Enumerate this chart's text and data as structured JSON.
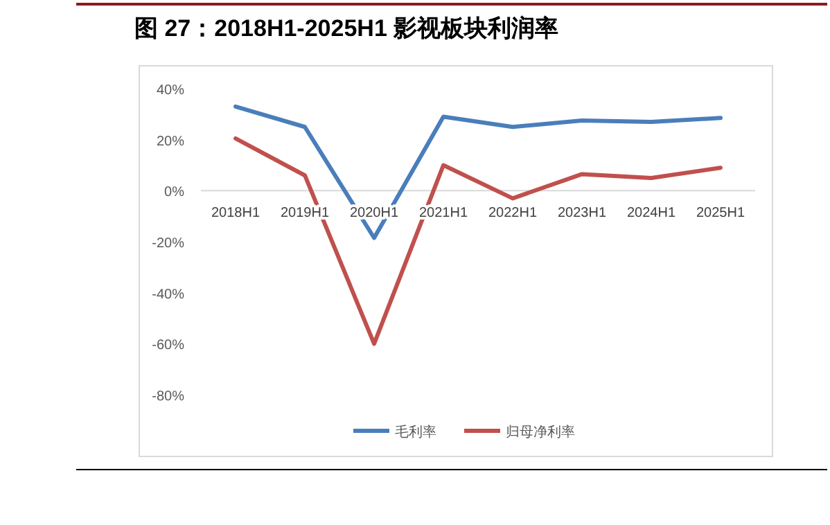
{
  "chart_data": {
    "type": "line",
    "title": "图 27：2018H1-2025H1 影视板块利润率",
    "categories": [
      "2018H1",
      "2019H1",
      "2020H1",
      "2021H1",
      "2022H1",
      "2023H1",
      "2024H1",
      "2025H1"
    ],
    "series": [
      {
        "name": "毛利率",
        "color": "#4a7ebb",
        "values": [
          33,
          25,
          -18.5,
          29,
          25,
          27.5,
          27,
          28.5
        ]
      },
      {
        "name": "归母净利率",
        "color": "#c0504d",
        "values": [
          20.5,
          6,
          -60,
          10,
          -3,
          6.5,
          5,
          9
        ]
      }
    ],
    "ylim": [
      -80,
      40
    ],
    "yticks": [
      {
        "value": 40,
        "label": "40%"
      },
      {
        "value": 20,
        "label": "20%"
      },
      {
        "value": 0,
        "label": "0%"
      },
      {
        "value": -20,
        "label": "-20%"
      },
      {
        "value": -40,
        "label": "-40%"
      },
      {
        "value": -60,
        "label": "-60%"
      },
      {
        "value": -80,
        "label": "-80%"
      }
    ],
    "grid": false,
    "legend": "bottom",
    "marker": "none",
    "line_style": "solid"
  }
}
